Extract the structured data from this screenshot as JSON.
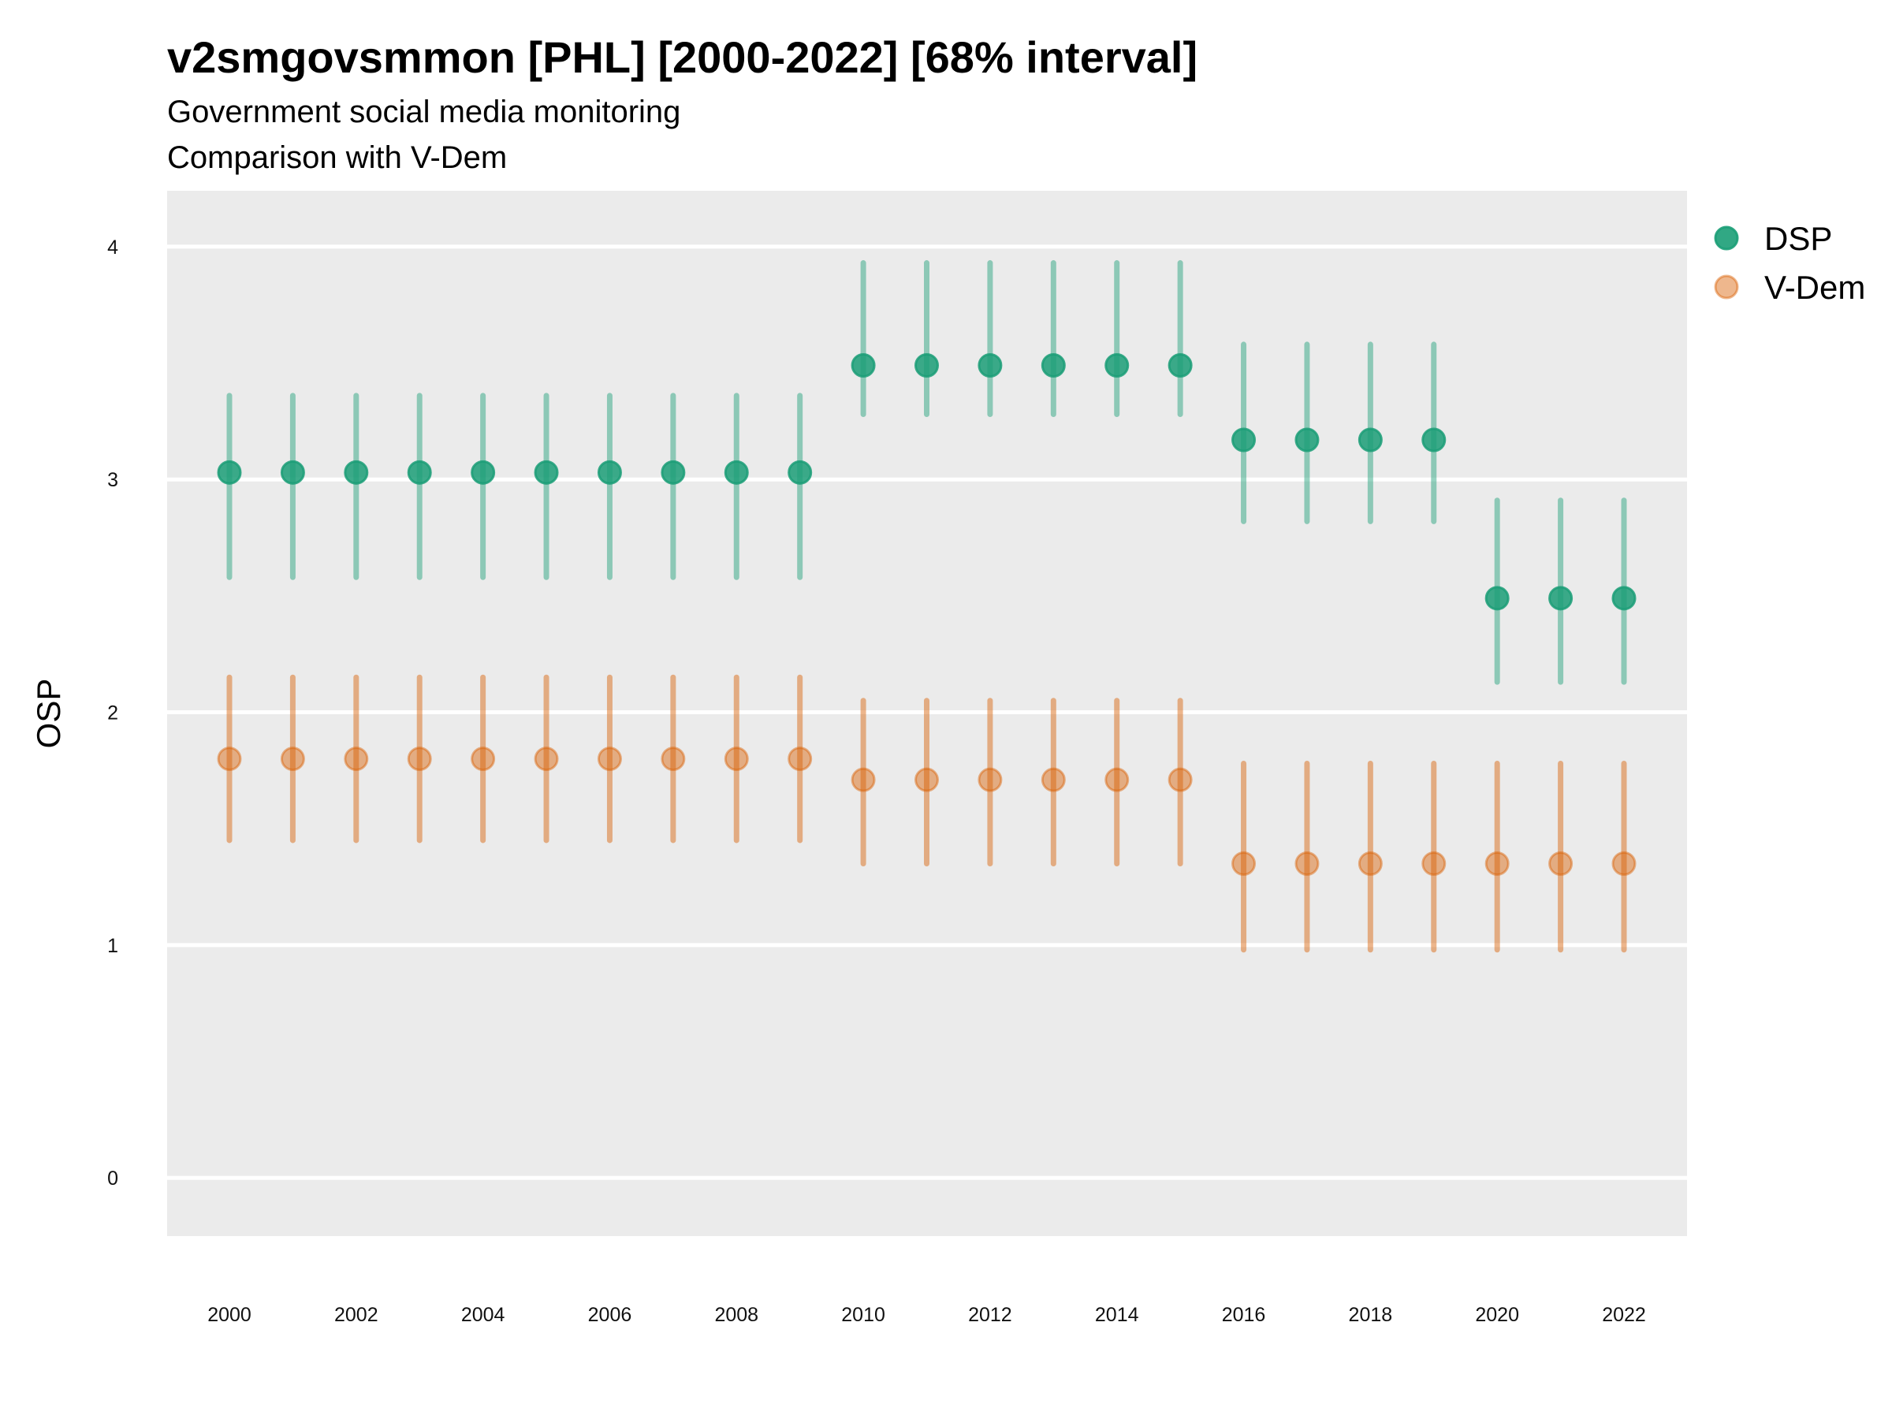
{
  "chart_data": {
    "type": "scatter",
    "title": "v2smgovsmmon [PHL] [2000-2022] [68% interval]",
    "subtitle": "Government social media monitoring",
    "caption_line": "Comparison with V-Dem",
    "xlabel": "",
    "ylabel": "OSP",
    "xlim": [
      1999,
      2023
    ],
    "ylim": [
      -0.25,
      4.24
    ],
    "yticks": [
      0,
      1,
      2,
      3,
      4
    ],
    "xticks": [
      2000,
      2002,
      2004,
      2006,
      2008,
      2010,
      2012,
      2014,
      2016,
      2018,
      2020,
      2022
    ],
    "grid": true,
    "legend_position": "right",
    "x": [
      2000,
      2001,
      2002,
      2003,
      2004,
      2005,
      2006,
      2007,
      2008,
      2009,
      2010,
      2011,
      2012,
      2013,
      2014,
      2015,
      2016,
      2017,
      2018,
      2019,
      2020,
      2021,
      2022
    ],
    "series": [
      {
        "name": "DSP",
        "color": "#1b9e77",
        "values": [
          3.03,
          3.03,
          3.03,
          3.03,
          3.03,
          3.03,
          3.03,
          3.03,
          3.03,
          3.03,
          3.49,
          3.49,
          3.49,
          3.49,
          3.49,
          3.49,
          3.17,
          3.17,
          3.17,
          3.17,
          2.49,
          2.49,
          2.49
        ],
        "lower": [
          2.58,
          2.58,
          2.58,
          2.58,
          2.58,
          2.58,
          2.58,
          2.58,
          2.58,
          2.58,
          3.28,
          3.28,
          3.28,
          3.28,
          3.28,
          3.28,
          2.82,
          2.82,
          2.82,
          2.82,
          2.13,
          2.13,
          2.13
        ],
        "upper": [
          3.36,
          3.36,
          3.36,
          3.36,
          3.36,
          3.36,
          3.36,
          3.36,
          3.36,
          3.36,
          3.93,
          3.93,
          3.93,
          3.93,
          3.93,
          3.93,
          3.58,
          3.58,
          3.58,
          3.58,
          2.91,
          2.91,
          2.91
        ]
      },
      {
        "name": "V-Dem",
        "color": "#d95f02",
        "values": [
          1.8,
          1.8,
          1.8,
          1.8,
          1.8,
          1.8,
          1.8,
          1.8,
          1.8,
          1.8,
          1.71,
          1.71,
          1.71,
          1.71,
          1.71,
          1.71,
          1.35,
          1.35,
          1.35,
          1.35,
          1.35,
          1.35,
          1.35
        ],
        "lower": [
          1.45,
          1.45,
          1.45,
          1.45,
          1.45,
          1.45,
          1.45,
          1.45,
          1.45,
          1.45,
          1.35,
          1.35,
          1.35,
          1.35,
          1.35,
          1.35,
          0.98,
          0.98,
          0.98,
          0.98,
          0.98,
          0.98,
          0.98
        ],
        "upper": [
          2.15,
          2.15,
          2.15,
          2.15,
          2.15,
          2.15,
          2.15,
          2.15,
          2.15,
          2.15,
          2.05,
          2.05,
          2.05,
          2.05,
          2.05,
          2.05,
          1.78,
          1.78,
          1.78,
          1.78,
          1.78,
          1.78,
          1.78
        ]
      }
    ]
  }
}
